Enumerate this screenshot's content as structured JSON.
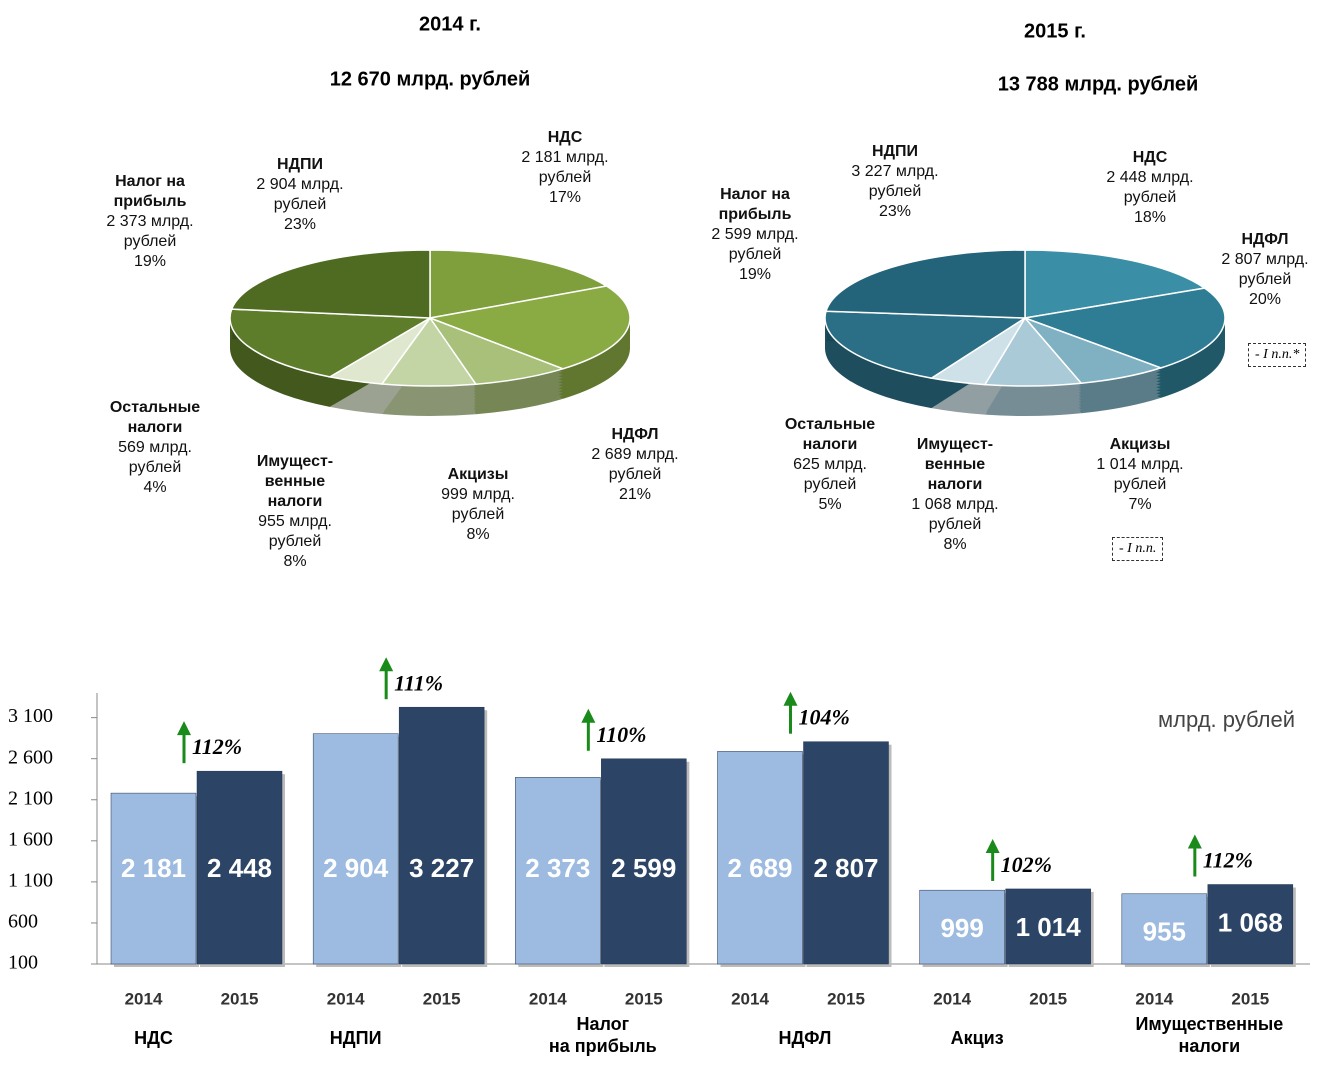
{
  "chart_data": [
    {
      "type": "pie",
      "title": "2014 г.",
      "subtitle": "12 670 млрд. рублей",
      "categories": [
        "НДС",
        "НДФЛ",
        "Акцизы",
        "Имущест-\nвенные\nналоги",
        "Остальные\nналоги",
        "Налог на\nприбыль",
        "НДПИ"
      ],
      "values": [
        2181,
        2689,
        999,
        955,
        569,
        2373,
        2904
      ],
      "value_labels": [
        "2 181 млрд. рублей",
        "2 689 млрд. рублей",
        "999 млрд. рублей",
        "955 млрд. рублей",
        "569 млрд. рублей",
        "2 373 млрд. рублей",
        "2 904 млрд. рублей"
      ],
      "shares": [
        17,
        21,
        8,
        8,
        4,
        19,
        23
      ],
      "share_labels": [
        "17%",
        "21%",
        "8%",
        "8%",
        "4%",
        "19%",
        "23%"
      ],
      "colors": [
        "#7f9f3c",
        "#8aaa44",
        "#a8c07a",
        "#c3d4a5",
        "#dfe8cf",
        "#5e7d2a",
        "#4f6b22"
      ]
    },
    {
      "type": "pie",
      "title": "2015 г.",
      "subtitle": "13 788 млрд. рублей",
      "categories": [
        "НДС",
        "НДФЛ",
        "Акцизы",
        "Имущест-\nвенные\nналоги",
        "Остальные\nналоги",
        "Налог на\nприбыль",
        "НДПИ"
      ],
      "values": [
        2448,
        2807,
        1014,
        1068,
        625,
        2599,
        3227
      ],
      "value_labels": [
        "2 448 млрд. рублей",
        "2 807 млрд. рублей",
        "1 014 млрд. рублей",
        "1 068 млрд. рублей",
        "625 млрд. рублей",
        "2 599 млрд. рублей",
        "3 227 млрд. рублей"
      ],
      "shares": [
        18,
        20,
        7,
        8,
        5,
        19,
        23
      ],
      "share_labels": [
        "18%",
        "20%",
        "7%",
        "8%",
        "5%",
        "19%",
        "23%"
      ],
      "colors": [
        "#3a8fa6",
        "#2e7d94",
        "#7fb1c2",
        "#a9cad6",
        "#cfe1e8",
        "#2b6f86",
        "#24647a"
      ],
      "annotations": [
        "- I n.n.*",
        "- I n.n."
      ]
    },
    {
      "type": "bar",
      "unit_label": "млрд. рублей",
      "categories": [
        "НДС",
        "НДПИ",
        "Налог\nна прибыль",
        "НДФЛ",
        "Акциз",
        "Имущественные\nналоги"
      ],
      "series": [
        {
          "name": "2014",
          "color": "#9dbbe0",
          "values": [
            2181,
            2904,
            2373,
            2689,
            999,
            955
          ],
          "value_labels": [
            "2 181",
            "2 904",
            "2 373",
            "2 689",
            "999",
            "955"
          ]
        },
        {
          "name": "2015",
          "color": "#2c4566",
          "values": [
            2448,
            3227,
            2599,
            2807,
            1014,
            1068
          ],
          "value_labels": [
            "2 448",
            "3 227",
            "2 599",
            "2 807",
            "1 014",
            "1 068"
          ]
        }
      ],
      "growth": [
        112,
        111,
        110,
        104,
        102,
        112
      ],
      "growth_labels": [
        "112%",
        "111%",
        "110%",
        "104%",
        "102%",
        "112%"
      ],
      "ylim": [
        100,
        3400
      ],
      "yticks": [
        100,
        600,
        {
          "value": 1100,
          "label": "1 100"
        },
        {
          "value": 1600,
          "label": "1 600"
        },
        {
          "value": 2100,
          "label": "2 100"
        },
        {
          "value": 2600,
          "label": "2 600"
        },
        {
          "value": 3100,
          "label": "3 100"
        }
      ]
    }
  ]
}
